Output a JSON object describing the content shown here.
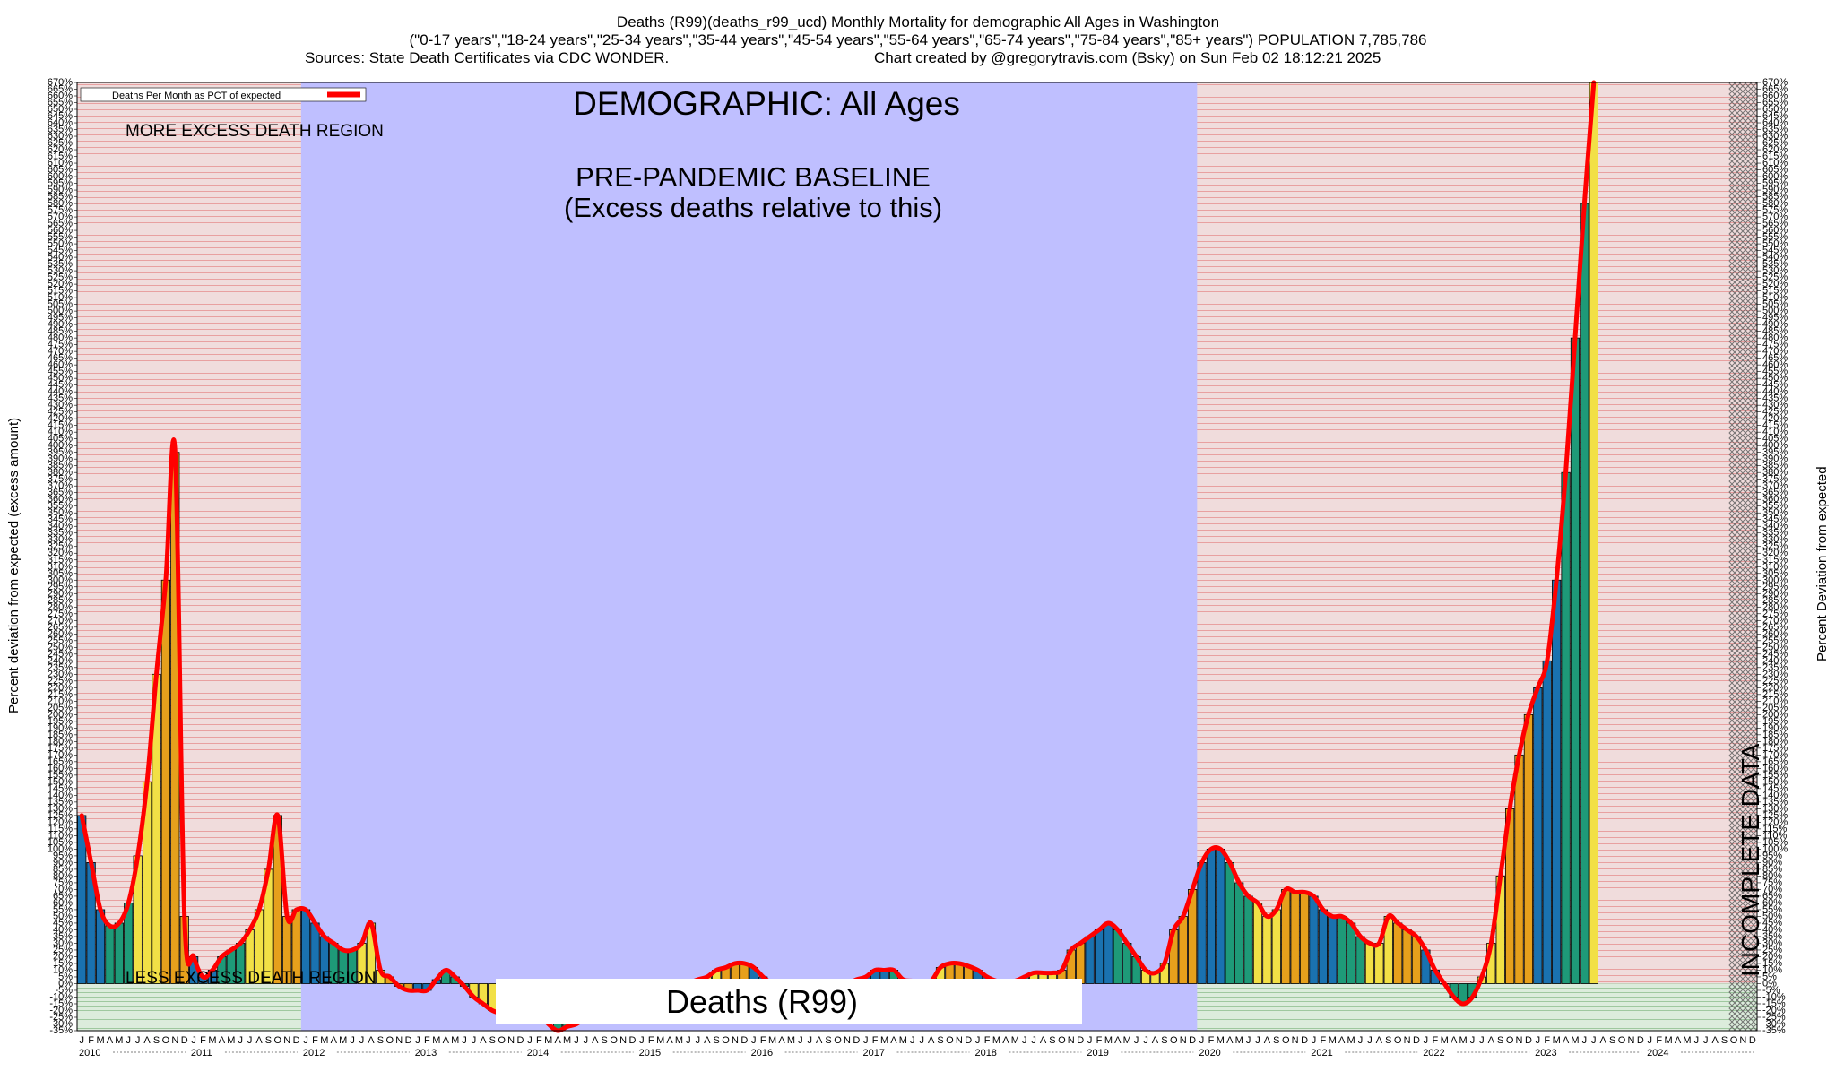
{
  "header": {
    "title_line1": "Deaths (R99)(deaths_r99_ucd) Monthly Mortality for demographic All Ages in Washington",
    "title_line2": "(\"0-17 years\",\"18-24 years\",\"25-34 years\",\"35-44 years\",\"45-54 years\",\"55-64 years\",\"65-74 years\",\"75-84 years\",\"85+ years\") POPULATION 7,785,786",
    "title_line3_left": "Sources: State Death Certificates via CDC WONDER.",
    "title_line3_right": "Chart created by @gregorytravis.com (Bsky) on Sun Feb 02 18:12:21 2025"
  },
  "colors": {
    "baseline_region": "#bfbfff",
    "excess_region": "#f0dcdc",
    "excess_stripe": "#e8a0a0",
    "less_region": "#dcecdc",
    "less_stripe": "#9fc89f",
    "line": "#ff0000",
    "bar_colors": [
      "#1a72b0",
      "#1e9a78",
      "#f2e046",
      "#e6a01c"
    ],
    "incomplete_hatch": "#707070"
  },
  "chart_data": {
    "type": "bar",
    "title": "DEMOGRAPHIC: All Ages",
    "ylabel": "Percent deviation from expected (excess amount)",
    "ylabel_right": "Percent Deviation from expected",
    "ylim": [
      -35,
      670
    ],
    "ytick_step": 5,
    "legend": {
      "label": "Deaths Per Month as PCT of expected",
      "position": "top-left"
    },
    "annotations": {
      "more_excess": "MORE EXCESS DEATH REGION",
      "less_excess": "LESS EXCESS DEATH REGION",
      "baseline_title": "PRE-PANDEMIC BASELINE",
      "baseline_subtitle": "(Excess deaths relative to this)",
      "incomplete": "INCOMPLETE DATA",
      "center_label": "Deaths (R99)"
    },
    "baseline_period": [
      "2012-01",
      "2019-12"
    ],
    "incomplete_period": [
      "2024-10",
      "2024-12"
    ],
    "month_letters": [
      "J",
      "F",
      "M",
      "A",
      "M",
      "J",
      "J",
      "A",
      "S",
      "O",
      "N",
      "D"
    ],
    "years": [
      2010,
      2011,
      2012,
      2013,
      2014,
      2015,
      2016,
      2017,
      2018,
      2019,
      2020,
      2021,
      2022,
      2023,
      2024
    ],
    "series": [
      {
        "name": "Deaths Per Month as PCT of expected",
        "values": [
          125,
          90,
          55,
          43,
          45,
          60,
          95,
          150,
          230,
          300,
          395,
          50,
          20,
          5,
          10,
          20,
          25,
          30,
          40,
          55,
          85,
          125,
          50,
          55,
          55,
          45,
          35,
          30,
          25,
          25,
          30,
          45,
          10,
          5,
          -2,
          -5,
          -5,
          -5,
          3,
          10,
          5,
          -2,
          -10,
          -15,
          -20,
          -22,
          -22,
          -22,
          -22,
          -22,
          -30,
          -35,
          -32,
          -30,
          -25,
          -20,
          -15,
          -12,
          -10,
          -8,
          -10,
          -10,
          -10,
          -10,
          -5,
          0,
          3,
          5,
          10,
          12,
          15,
          15,
          12,
          5,
          0,
          -2,
          -3,
          -3,
          -5,
          -5,
          -3,
          0,
          0,
          3,
          5,
          10,
          10,
          10,
          3,
          2,
          2,
          2,
          12,
          15,
          15,
          13,
          10,
          5,
          2,
          2,
          2,
          5,
          8,
          8,
          8,
          10,
          25,
          30,
          35,
          40,
          45,
          40,
          30,
          20,
          10,
          8,
          15,
          40,
          50,
          70,
          90,
          100,
          100,
          90,
          75,
          65,
          60,
          50,
          55,
          70,
          68,
          68,
          65,
          55,
          50,
          50,
          45,
          35,
          30,
          30,
          50,
          45,
          40,
          35,
          25,
          10,
          0,
          -10,
          -15,
          -10,
          5,
          30,
          80,
          130,
          170,
          200,
          220,
          240,
          300,
          380,
          480,
          580,
          670
        ]
      }
    ]
  }
}
